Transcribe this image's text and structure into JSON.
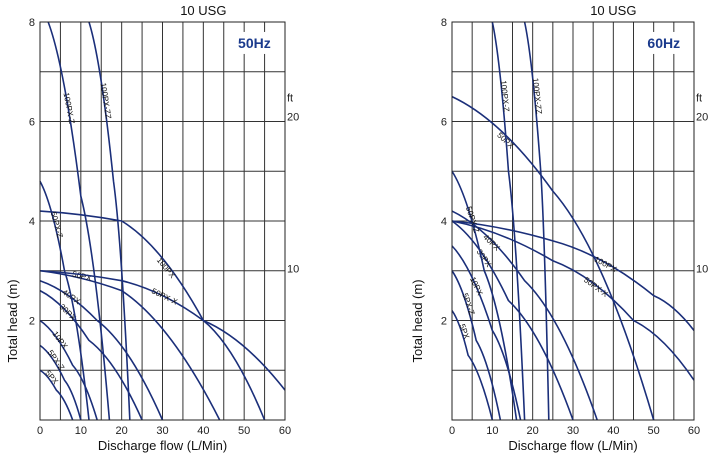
{
  "chart_data": [
    {
      "type": "line",
      "top_label": "10 USG",
      "badge": "50Hz",
      "xlabel": "Discharge flow (L/Min)",
      "ylabel": "Total head (m)",
      "xlim": [
        0,
        60
      ],
      "ylim": [
        0,
        8
      ],
      "x_ticks": [
        0,
        10,
        20,
        30,
        40,
        50,
        60
      ],
      "y_ticks": [
        2,
        4,
        6,
        8
      ],
      "ft_label": "ft",
      "ft_ticks": [
        10,
        20
      ],
      "grid": true,
      "series": [
        {
          "name": "5PX",
          "x": [
            0,
            4,
            8
          ],
          "y": [
            1.0,
            0.6,
            0
          ]
        },
        {
          "name": "5PX-Z",
          "x": [
            0,
            6,
            10
          ],
          "y": [
            1.5,
            0.8,
            0
          ]
        },
        {
          "name": "10PX",
          "x": [
            0,
            8,
            14
          ],
          "y": [
            2.0,
            1.1,
            0
          ]
        },
        {
          "name": "30PX",
          "x": [
            0,
            12,
            25
          ],
          "y": [
            2.6,
            1.6,
            0
          ]
        },
        {
          "name": "40PX",
          "x": [
            0,
            14,
            30
          ],
          "y": [
            2.8,
            2.0,
            0
          ]
        },
        {
          "name": "50PX",
          "x": [
            0,
            20,
            44
          ],
          "y": [
            3.0,
            2.6,
            0
          ]
        },
        {
          "name": "50PX-X",
          "x": [
            0,
            20,
            40,
            60
          ],
          "y": [
            3.0,
            2.8,
            2.0,
            0.6
          ]
        },
        {
          "name": "100PX",
          "x": [
            0,
            20,
            40,
            55
          ],
          "y": [
            4.2,
            4.0,
            2.0,
            0
          ]
        },
        {
          "name": "50PX-Z",
          "x": [
            0,
            6,
            12
          ],
          "y": [
            4.8,
            3.0,
            0
          ]
        },
        {
          "name": "100PX-Z",
          "x": [
            2,
            10,
            17
          ],
          "y": [
            8.0,
            4.5,
            0
          ]
        },
        {
          "name": "100PX-ZZ",
          "x": [
            12,
            18,
            22
          ],
          "y": [
            8.0,
            4.8,
            0
          ]
        }
      ]
    },
    {
      "type": "line",
      "top_label": "10 USG",
      "badge": "60Hz",
      "xlabel": "Discharge flow (L/Min)",
      "ylabel": "Total head (m)",
      "xlim": [
        0,
        60
      ],
      "ylim": [
        0,
        8
      ],
      "x_ticks": [
        0,
        10,
        20,
        30,
        40,
        50,
        60
      ],
      "y_ticks": [
        2,
        4,
        6,
        8
      ],
      "ft_label": "ft",
      "ft_ticks": [
        10,
        20
      ],
      "grid": true,
      "series": [
        {
          "name": "5PX",
          "x": [
            0,
            4,
            10
          ],
          "y": [
            2.2,
            1.3,
            0
          ]
        },
        {
          "name": "5PX-Z",
          "x": [
            0,
            6,
            12
          ],
          "y": [
            3.0,
            1.6,
            0
          ]
        },
        {
          "name": "10PX",
          "x": [
            0,
            10,
            17
          ],
          "y": [
            3.5,
            1.8,
            0
          ]
        },
        {
          "name": "30PX",
          "x": [
            0,
            14,
            30
          ],
          "y": [
            4.0,
            2.4,
            0
          ]
        },
        {
          "name": "40PX",
          "x": [
            0,
            18,
            36
          ],
          "y": [
            4.2,
            2.8,
            0
          ]
        },
        {
          "name": "50PX",
          "x": [
            0,
            25,
            50
          ],
          "y": [
            6.5,
            4.6,
            0
          ]
        },
        {
          "name": "50PX-X",
          "x": [
            0,
            25,
            45,
            60
          ],
          "y": [
            4.0,
            3.2,
            2.0,
            0.8
          ]
        },
        {
          "name": "100PX",
          "x": [
            0,
            25,
            50,
            60
          ],
          "y": [
            4.0,
            3.6,
            2.5,
            1.8
          ]
        },
        {
          "name": "50PX-Z",
          "x": [
            0,
            8,
            16
          ],
          "y": [
            5.0,
            3.0,
            0
          ]
        },
        {
          "name": "100PX-Z",
          "x": [
            10,
            14,
            18
          ],
          "y": [
            8.0,
            5.0,
            0
          ]
        },
        {
          "name": "100PX-ZZ",
          "x": [
            18,
            22,
            24
          ],
          "y": [
            8.0,
            5.0,
            0
          ]
        }
      ]
    }
  ]
}
